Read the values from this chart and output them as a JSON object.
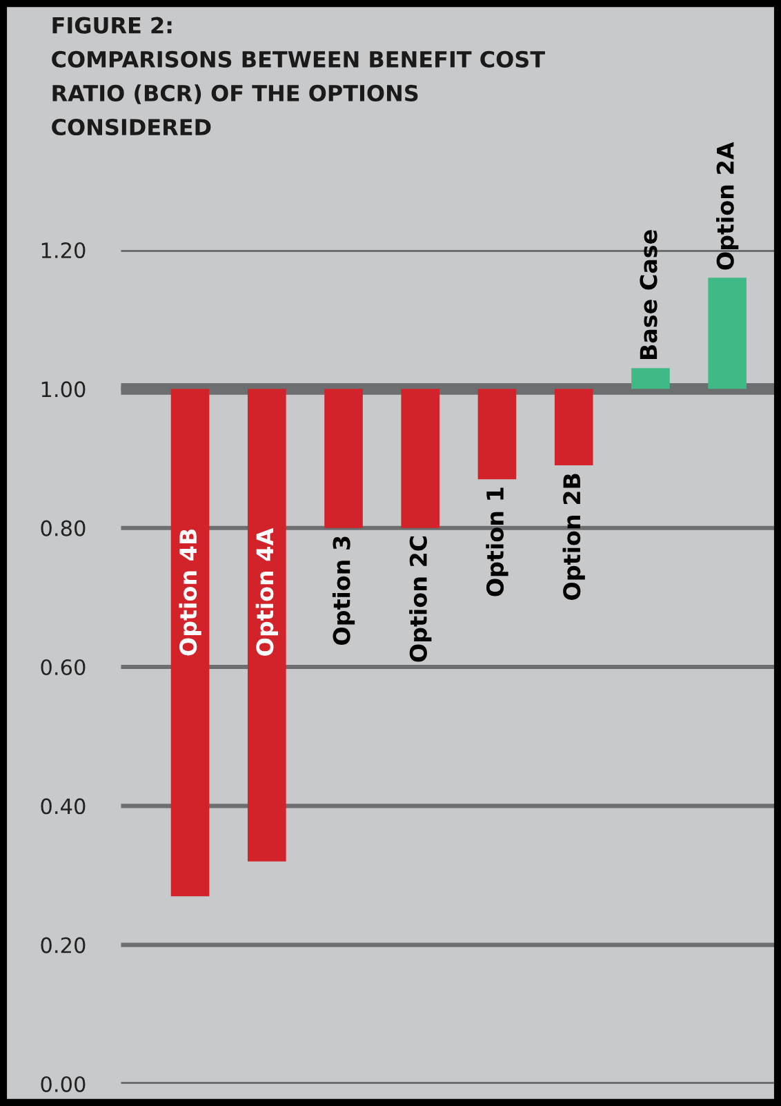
{
  "chart_data": {
    "type": "bar",
    "title": "FIGURE 2:\nCOMPARISONS BETWEEN BENEFIT COST\nRATIO (BCR) OF THE OPTIONS\nCONSIDERED",
    "categories": [
      "Option 4B",
      "Option 4A",
      "Option 3",
      "Option 2C",
      "Option 1",
      "Option 2B",
      "Base Case",
      "Option 2A"
    ],
    "base": [
      1,
      1,
      1,
      1,
      1,
      1,
      1,
      1
    ],
    "values": [
      -0.73,
      -0.68,
      -0.2,
      -0.2,
      -0.13,
      -0.11,
      0.03,
      0.16
    ],
    "colors": [
      "#d2232a",
      "#d2232a",
      "#d2232a",
      "#d2232a",
      "#d2232a",
      "#d2232a",
      "#3fba87",
      "#3fba87"
    ],
    "ylim": [
      0,
      1.2
    ],
    "ref_lines": [
      {
        "axis": "y",
        "value": 1.0
      }
    ],
    "yticks": [
      {
        "value": 0,
        "label": "0.00"
      },
      {
        "value": 0.2,
        "label": "0.20"
      },
      {
        "value": 0.4,
        "label": "0.40"
      },
      {
        "value": 0.6,
        "label": "0.60"
      },
      {
        "value": 0.8,
        "label": "0.80"
      },
      {
        "value": 1.0,
        "label": "1.00"
      },
      {
        "value": 1.2,
        "label": "1.20"
      }
    ],
    "grid": "y",
    "tick_labels": "y"
  }
}
